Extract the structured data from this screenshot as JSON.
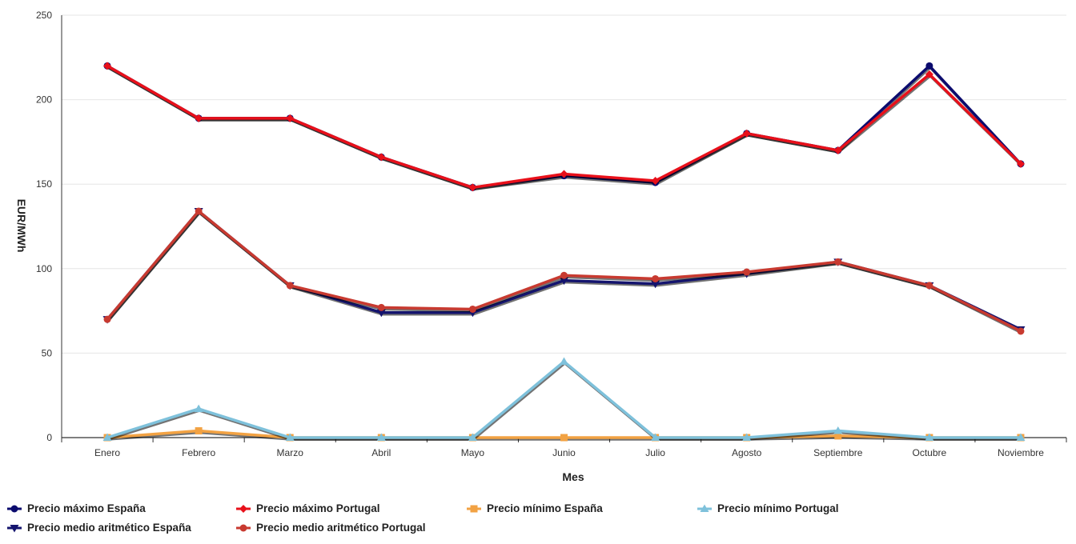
{
  "chart_data": {
    "type": "line",
    "title": "",
    "xlabel": "Mes",
    "ylabel": "EUR/MWh",
    "ylim": [
      0,
      250
    ],
    "yticks": [
      0,
      50,
      100,
      150,
      200,
      250
    ],
    "grid": true,
    "legend_position": "bottom",
    "categories": [
      "Enero",
      "Febrero",
      "Marzo",
      "Abril",
      "Mayo",
      "Junio",
      "Julio",
      "Agosto",
      "Septiembre",
      "Octubre",
      "Noviembre"
    ],
    "series": [
      {
        "name": "Precio máximo España",
        "color": "#0b0b6e",
        "marker": "circle",
        "values": [
          220,
          189,
          189,
          166,
          148,
          155,
          151,
          180,
          170,
          220,
          162
        ]
      },
      {
        "name": "Precio máximo Portugal",
        "color": "#e8101a",
        "marker": "diamond",
        "values": [
          220,
          189,
          189,
          166,
          148,
          156,
          152,
          180,
          170,
          215,
          162
        ]
      },
      {
        "name": "Precio mínimo España",
        "color": "#f2a243",
        "marker": "square",
        "values": [
          0,
          4,
          0,
          0,
          0,
          0,
          0,
          0,
          1,
          0,
          0
        ]
      },
      {
        "name": "Precio mínimo Portugal",
        "color": "#7ec1db",
        "marker": "triangle",
        "values": [
          0,
          17,
          0,
          0,
          0,
          45,
          0,
          0,
          4,
          0,
          0
        ]
      },
      {
        "name": "Precio medio aritmético España",
        "color": "#14146e",
        "marker": "triangle-down",
        "values": [
          70,
          134,
          90,
          74,
          74,
          93,
          91,
          97,
          104,
          90,
          64
        ]
      },
      {
        "name": "Precio medio aritmético Portugal",
        "color": "#c83a30",
        "marker": "circle",
        "values": [
          70,
          134,
          90,
          77,
          76,
          96,
          94,
          98,
          104,
          90,
          63
        ]
      }
    ]
  }
}
